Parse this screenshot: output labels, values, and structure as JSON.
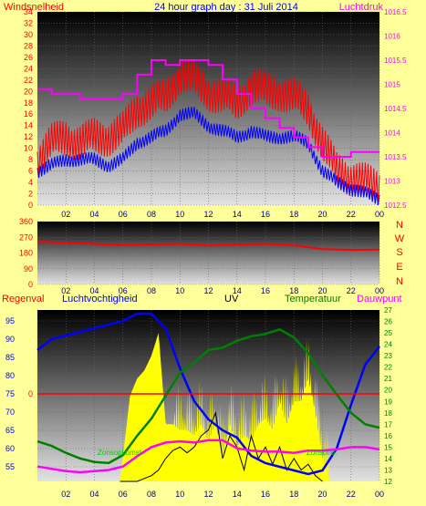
{
  "header": {
    "wind_label": "Windsnelheid",
    "title": "24 hour graph day : 31 Juli 2014",
    "pressure_label": "Luchtdruk"
  },
  "direction_letters": [
    "N",
    "W",
    "S",
    "E",
    "N"
  ],
  "bottom_labels": {
    "rain": "Regenval",
    "humidity": "Luchtvochtigheid",
    "uv": "UV",
    "temperature": "Temperatuur",
    "dewpoint": "Dauwpunt"
  },
  "annotations": {
    "sunrise": "Zonsopkomst",
    "sunset": "Zonsond."
  },
  "colors": {
    "wind_gust": "#ff0000",
    "wind_avg": "#0000ff",
    "pressure": "#ff00ff",
    "wind_direction": "#ff0000",
    "humidity": "#0000ff",
    "temperature": "#008000",
    "dewpoint": "#ff00ff",
    "solar": "#ffff00",
    "uv": "#000000",
    "rain_line": "#ff0000"
  },
  "chart_data": [
    {
      "type": "line",
      "name": "wind-pressure",
      "x_ticks": [
        "02",
        "04",
        "06",
        "08",
        "10",
        "12",
        "14",
        "16",
        "18",
        "20",
        "22",
        "00"
      ],
      "y_left_ticks": [
        "0",
        "2",
        "4",
        "6",
        "8",
        "10",
        "12",
        "14",
        "16",
        "18",
        "20",
        "22",
        "24",
        "26",
        "28",
        "30",
        "32",
        "34"
      ],
      "y_left_range": [
        0,
        34
      ],
      "y_right_ticks": [
        "1012.5",
        "1013",
        "1013.5",
        "1014",
        "1014.5",
        "1015",
        "1015.5",
        "1016",
        "1016.5"
      ],
      "y_right_range": [
        1012.5,
        1016.5
      ],
      "series": [
        {
          "name": "Windsnelheid",
          "axis": "left",
          "x": [
            0,
            1,
            2,
            3,
            4,
            5,
            6,
            7,
            8,
            9,
            10,
            11,
            12,
            13,
            14,
            15,
            16,
            17,
            18,
            19,
            20,
            21,
            22,
            23,
            24
          ],
          "values": [
            8,
            11,
            12,
            11,
            12,
            12,
            13,
            17,
            18,
            19,
            23,
            22,
            20,
            19,
            18,
            21,
            20,
            20,
            19,
            17,
            11,
            6,
            5,
            4,
            3
          ]
        },
        {
          "name": "windsnelheid-gemiddeld",
          "axis": "left",
          "x": [
            0,
            1,
            2,
            3,
            4,
            5,
            6,
            7,
            8,
            9,
            10,
            11,
            12,
            13,
            14,
            15,
            16,
            17,
            18,
            19,
            20,
            21,
            22,
            23,
            24
          ],
          "values": [
            6,
            7,
            8,
            8,
            8,
            7,
            8,
            11,
            12,
            13,
            16,
            16,
            14,
            13,
            12,
            13,
            12,
            12,
            12,
            11,
            6,
            4,
            3,
            2,
            1
          ]
        },
        {
          "name": "Luchtdruk",
          "axis": "right",
          "x": [
            0,
            1,
            2,
            3,
            4,
            5,
            6,
            7,
            8,
            9,
            10,
            11,
            12,
            13,
            14,
            15,
            16,
            17,
            18,
            19,
            20,
            21,
            22,
            23,
            24
          ],
          "values": [
            1014.9,
            1014.8,
            1014.8,
            1014.7,
            1014.7,
            1014.7,
            1014.8,
            1015.2,
            1015.5,
            1015.4,
            1015.5,
            1015.5,
            1015.4,
            1015.1,
            1014.8,
            1014.5,
            1014.3,
            1014.1,
            1013.9,
            1013.7,
            1013.5,
            1013.5,
            1013.6,
            1013.6,
            1013.6
          ]
        }
      ]
    },
    {
      "type": "line",
      "name": "wind-direction",
      "x_ticks": [
        "02",
        "04",
        "06",
        "08",
        "10",
        "12",
        "14",
        "16",
        "18",
        "20",
        "22",
        "00"
      ],
      "y_ticks": [
        "0",
        "90",
        "180",
        "270",
        "360"
      ],
      "y_range": [
        0,
        360
      ],
      "series": [
        {
          "name": "windrichting",
          "x": [
            0,
            2,
            4,
            6,
            8,
            10,
            12,
            14,
            16,
            18,
            20,
            22,
            24
          ],
          "values": [
            245,
            238,
            232,
            225,
            228,
            232,
            222,
            228,
            232,
            225,
            202,
            198,
            200
          ]
        }
      ]
    },
    {
      "type": "line",
      "name": "humidity-uv-temperature",
      "x_ticks": [
        "02",
        "04",
        "06",
        "08",
        "10",
        "12",
        "14",
        "16",
        "18",
        "20",
        "22",
        "00"
      ],
      "y_left_ticks": [
        "55",
        "60",
        "65",
        "70",
        "75",
        "80",
        "85",
        "90",
        "95"
      ],
      "y_left_range": [
        51,
        98
      ],
      "rain_mark": "0",
      "y_right_ticks": [
        "12",
        "13",
        "14",
        "15",
        "16",
        "17",
        "18",
        "19",
        "20",
        "21",
        "22",
        "23",
        "24",
        "25",
        "26",
        "27"
      ],
      "y_right_range": [
        12,
        27
      ],
      "series": [
        {
          "name": "Luchtvochtigheid",
          "axis": "left",
          "x": [
            0,
            1,
            2,
            3,
            4,
            5,
            6,
            7,
            8,
            9,
            10,
            11,
            12,
            13,
            14,
            15,
            16,
            17,
            18,
            19,
            20,
            21,
            22,
            23,
            24
          ],
          "values": [
            87,
            90,
            91,
            92,
            93,
            94,
            95,
            97,
            97,
            93,
            82,
            73,
            68,
            65,
            63,
            58,
            56,
            55,
            54,
            53,
            54,
            60,
            72,
            83,
            88
          ]
        },
        {
          "name": "Temperatuur",
          "axis": "right",
          "x": [
            0,
            1,
            2,
            3,
            4,
            5,
            6,
            7,
            8,
            9,
            10,
            11,
            12,
            13,
            14,
            15,
            16,
            17,
            18,
            19,
            20,
            21,
            22,
            23,
            24
          ],
          "values": [
            15.5,
            15.1,
            14.5,
            14.0,
            13.7,
            13.6,
            14.3,
            16.0,
            17.5,
            19.5,
            21.5,
            22.4,
            23.5,
            23.7,
            24.3,
            24.7,
            24.9,
            25.3,
            24.6,
            23.2,
            21.3,
            19.6,
            18.0,
            17.0,
            16.7
          ]
        },
        {
          "name": "Dauwpunt",
          "axis": "right",
          "x": [
            0,
            1,
            2,
            3,
            4,
            5,
            6,
            7,
            8,
            9,
            10,
            11,
            12,
            13,
            14,
            15,
            16,
            17,
            18,
            19,
            20,
            21,
            22,
            23,
            24
          ],
          "values": [
            13.3,
            13.1,
            12.9,
            12.8,
            12.9,
            13.0,
            13.3,
            14.2,
            15.0,
            15.4,
            15.5,
            15.4,
            15.6,
            15.6,
            14.9,
            14.7,
            14.6,
            14.6,
            14.5,
            14.7,
            14.7,
            14.8,
            15.0,
            15.0,
            14.8
          ]
        },
        {
          "name": "zoninstraling",
          "axis": "right",
          "x": [
            5.8,
            6.5,
            7,
            7.5,
            8,
            8.5,
            9,
            9.5,
            10,
            10.5,
            11,
            11.5,
            12,
            12.5,
            13,
            13.5,
            14,
            14.5,
            15,
            15.5,
            16,
            16.5,
            17,
            17.5,
            18,
            18.5,
            19,
            19.5,
            20,
            20.5
          ],
          "values": [
            12,
            19.5,
            21,
            21.7,
            23,
            25,
            17,
            17,
            16.5,
            16.5,
            16,
            17,
            15.5,
            17,
            14,
            17,
            15,
            16,
            15.5,
            17,
            17.5,
            16.5,
            19,
            17,
            19,
            19,
            21,
            18,
            14,
            12
          ]
        },
        {
          "name": "UV",
          "axis": "right",
          "x": [
            5.8,
            7,
            8,
            8.5,
            9,
            9.5,
            10,
            10.5,
            11,
            11.5,
            12,
            12.5,
            13,
            13.5,
            14,
            14.5,
            15,
            15.5,
            16,
            16.5,
            17,
            17.5,
            18,
            18.5,
            19,
            19.5,
            20
          ],
          "values": [
            12,
            12,
            12.5,
            13,
            14,
            14.7,
            15,
            14.5,
            15,
            16,
            16.5,
            18,
            14,
            16,
            15,
            13,
            16,
            14,
            15,
            13.5,
            15,
            13,
            14,
            13,
            13.5,
            12.5,
            12
          ]
        }
      ]
    }
  ]
}
